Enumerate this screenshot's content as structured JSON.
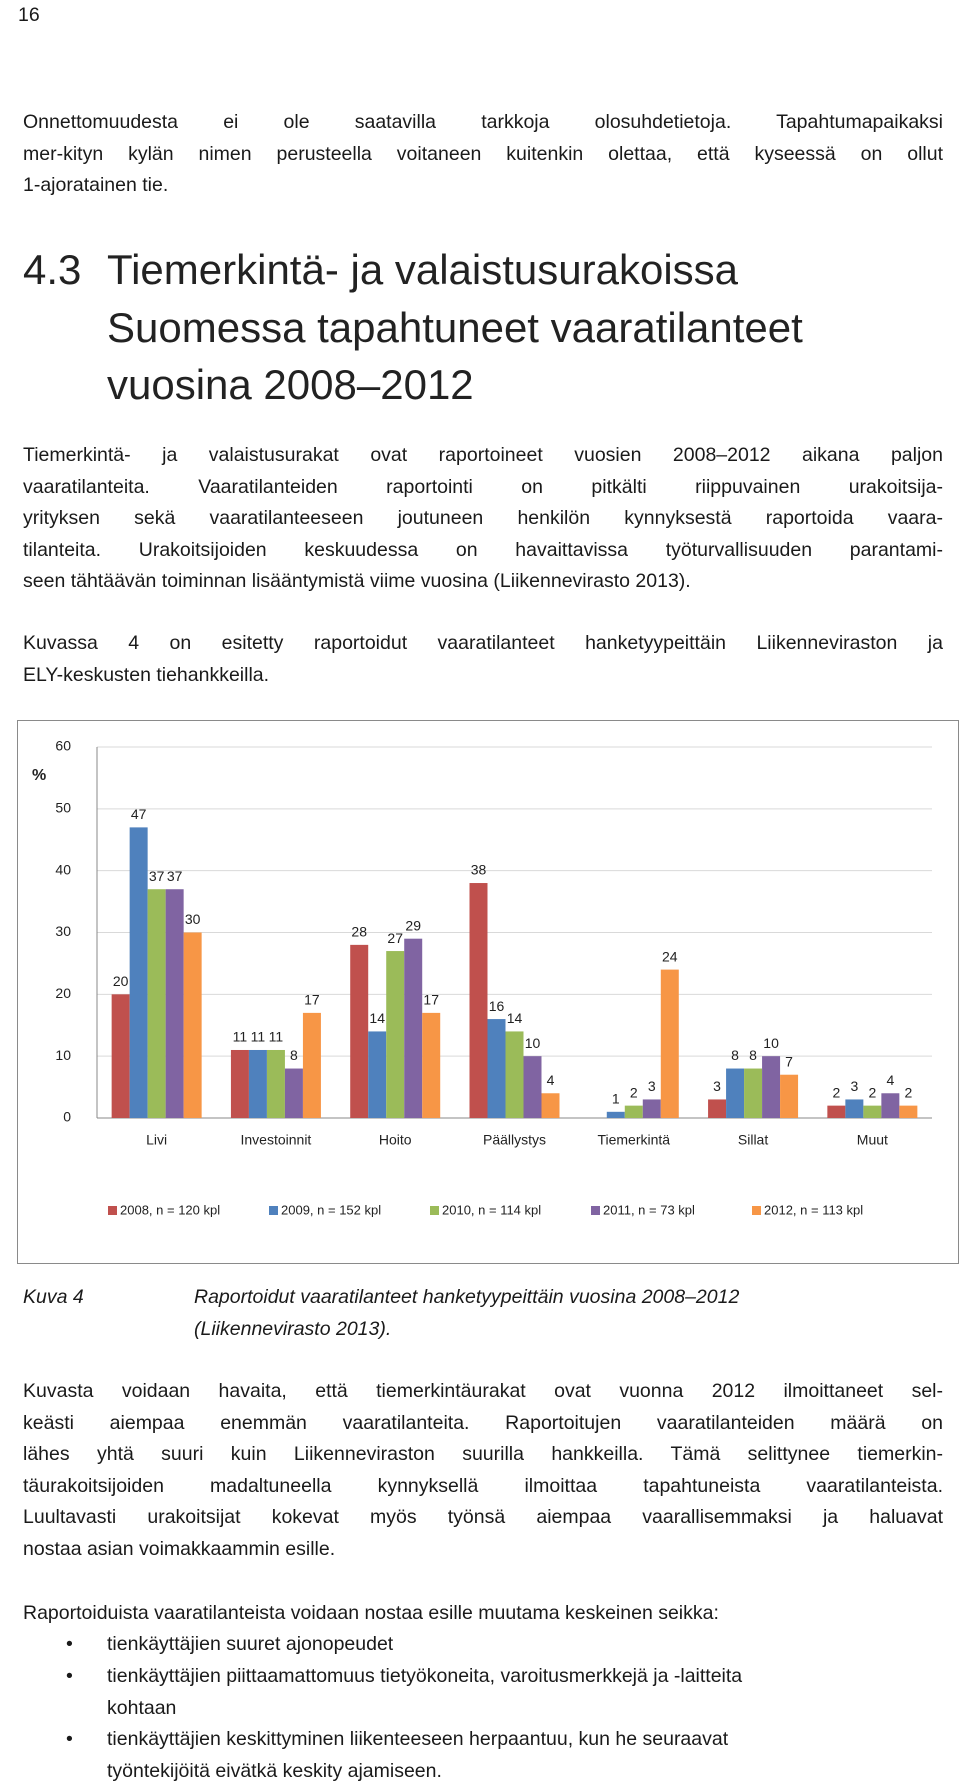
{
  "page_number": "16",
  "intro": {
    "lines": [
      "Onnettomuudesta ei ole saatavilla tarkkoja olosuhdetietoja. Tapahtumapaikaksi",
      "mer-kityn kylän nimen perusteella voitaneen kuitenkin olettaa, että kyseessä on ollut",
      "1-ajoratainen tie."
    ]
  },
  "section": {
    "number": "4.3",
    "title_lines": [
      "Tiemerkintä- ja valaistusurakoissa",
      "Suomessa tapahtuneet vaaratilanteet",
      "vuosina 2008–2012"
    ]
  },
  "body": [
    {
      "lines": [
        "Tiemerkintä- ja valaistusurakat ovat raportoineet vuosien 2008–2012 aikana paljon",
        "vaaratilanteita. Vaaratilanteiden raportointi on pitkälti riippuvainen urakoitsija-",
        "yrityksen sekä vaaratilanteeseen joutuneen henkilön kynnyksestä raportoida vaara-",
        "tilanteita. Urakoitsijoiden keskuudessa on havaittavissa työturvallisuuden parantami-",
        "seen tähtäävän toiminnan lisääntymistä viime vuosina (Liikennevirasto 2013)."
      ]
    },
    {
      "lines": [
        "Kuvassa 4 on esitetty raportoidut vaaratilanteet hanketyypeittäin Liikenneviraston ja",
        "ELY-keskusten tiehankkeilla."
      ]
    }
  ],
  "chart_data": {
    "type": "bar",
    "y_label": "%",
    "categories": [
      "Livi",
      "Investoinnit",
      "Hoito",
      "Päällystys",
      "Tiemerkintä",
      "Sillat",
      "Muut"
    ],
    "series": [
      {
        "name": "2008, n = 120 kpl",
        "color": "#c0504d",
        "values": [
          20,
          11,
          28,
          38,
          null,
          3,
          2
        ]
      },
      {
        "name": "2009, n = 152 kpl",
        "color": "#4f81bd",
        "values": [
          47,
          11,
          14,
          16,
          1,
          8,
          3
        ]
      },
      {
        "name": "2010, n = 114 kpl",
        "color": "#9bbb59",
        "values": [
          37,
          11,
          27,
          14,
          2,
          8,
          2
        ]
      },
      {
        "name": "2011, n = 73 kpl",
        "color": "#8064a2",
        "values": [
          37,
          8,
          29,
          10,
          3,
          10,
          4
        ]
      },
      {
        "name": "2012, n = 113 kpl",
        "color": "#f79646",
        "values": [
          30,
          17,
          17,
          4,
          24,
          7,
          2
        ]
      }
    ],
    "ylim": [
      0,
      60
    ],
    "yticks": [
      0,
      10,
      20,
      30,
      40,
      50,
      60
    ],
    "grid": true,
    "legend": "bottom"
  },
  "caption": {
    "label": "Kuva 4",
    "lines": [
      "Raportoidut vaaratilanteet hanketyypeittäin vuosina 2008–2012",
      "(Liikennevirasto 2013)."
    ]
  },
  "after": [
    {
      "lines": [
        "Kuvasta voidaan havaita, että tiemerkintäurakat ovat vuonna 2012 ilmoittaneet sel-",
        "keästi aiempaa enemmän vaaratilanteita. Raportoitujen vaaratilanteiden määrä on",
        "lähes yhtä suuri kuin Liikenneviraston suurilla hankkeilla. Tämä selittynee tiemerkin-",
        "täurakoitsijoiden madaltuneella kynnyksellä ilmoittaa tapahtuneista vaaratilanteista.",
        "Luultavasti urakoitsijat kokevat myös työnsä aiempaa vaarallisemmaksi ja haluavat",
        "nostaa asian voimakkaammin esille."
      ]
    },
    {
      "lines": [
        "Raportoiduista vaaratilanteista voidaan nostaa esille muutama keskeinen seikka:"
      ]
    }
  ],
  "bullets": [
    {
      "lines": [
        "tienkäyttäjien suuret ajonopeudet"
      ]
    },
    {
      "lines": [
        "tienkäyttäjien piittaamattomuus tietyökoneita, varoitusmerkkejä ja -laitteita",
        "kohtaan"
      ]
    },
    {
      "lines": [
        "tienkäyttäjien keskittyminen liikenteeseen herpaantuu, kun he seuraavat",
        "työntekijöitä eivätkä keskity ajamiseen."
      ]
    }
  ]
}
